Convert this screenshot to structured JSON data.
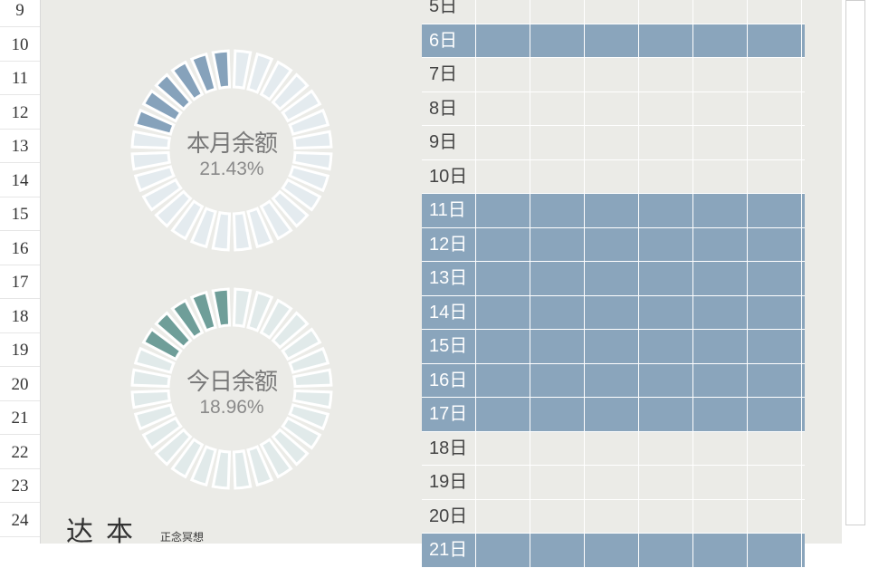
{
  "row_numbers": [
    "9",
    "10",
    "11",
    "12",
    "13",
    "14",
    "15",
    "16",
    "17",
    "18",
    "19",
    "20",
    "21",
    "22",
    "23",
    "24"
  ],
  "donuts": [
    {
      "title": "本月余额",
      "percent_text": "21.43%",
      "filled_fraction": 0.2143,
      "color": "#86a2bb",
      "empty_color": "#e4ebef"
    },
    {
      "title": "今日余额",
      "percent_text": "18.96%",
      "filled_fraction": 0.1896,
      "color": "#6f9e99",
      "empty_color": "#e1eaea"
    }
  ],
  "side_panel": {
    "title": "达本",
    "subtitle": "正念冥想"
  },
  "day_rows": [
    {
      "label": "5日",
      "highlighted": false
    },
    {
      "label": "6日",
      "highlighted": true
    },
    {
      "label": "7日",
      "highlighted": false
    },
    {
      "label": "8日",
      "highlighted": false
    },
    {
      "label": "9日",
      "highlighted": false
    },
    {
      "label": "10日",
      "highlighted": false
    },
    {
      "label": "11日",
      "highlighted": true
    },
    {
      "label": "12日",
      "highlighted": true
    },
    {
      "label": "13日",
      "highlighted": true
    },
    {
      "label": "14日",
      "highlighted": true
    },
    {
      "label": "15日",
      "highlighted": true
    },
    {
      "label": "16日",
      "highlighted": true
    },
    {
      "label": "17日",
      "highlighted": true
    },
    {
      "label": "18日",
      "highlighted": false
    },
    {
      "label": "19日",
      "highlighted": false
    },
    {
      "label": "20日",
      "highlighted": false
    },
    {
      "label": "21日",
      "highlighted": true
    }
  ],
  "colors": {
    "sheet_bg": "#ebebe7",
    "highlight_row": "#8aa5bc",
    "grid_line": "#ffffff"
  }
}
